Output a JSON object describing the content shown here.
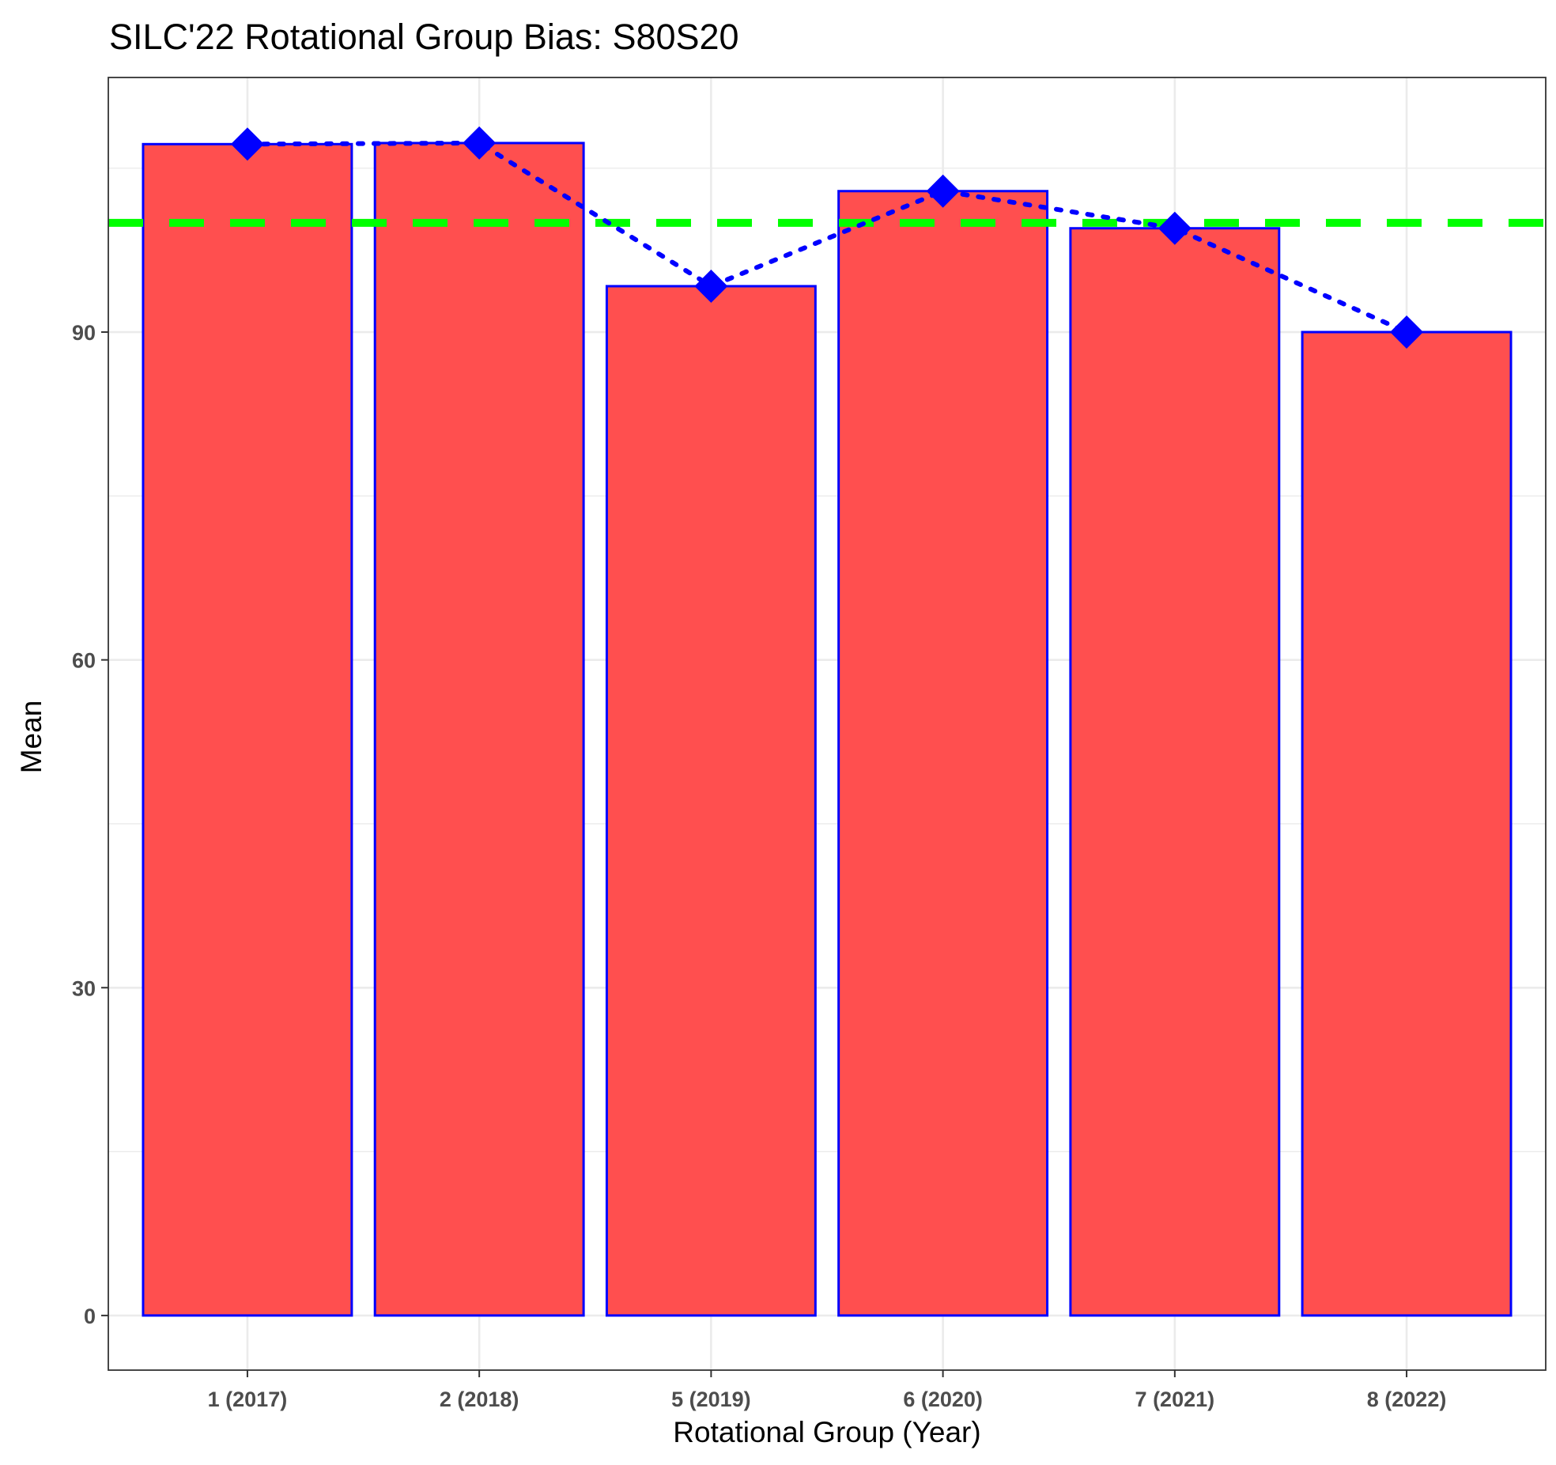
{
  "chart_data": {
    "type": "bar",
    "title": "SILC'22 Rotational Group Bias: S80S20",
    "xlabel": "Rotational Group (Year)",
    "ylabel": "Mean",
    "categories": [
      "1 (2017)",
      "2 (2018)",
      "5 (2019)",
      "6 (2020)",
      "7 (2021)",
      "8 (2022)"
    ],
    "values": [
      107.2,
      107.3,
      94.2,
      102.9,
      99.5,
      90.0
    ],
    "ylim": [
      -5,
      113.3
    ],
    "yticks": [
      0,
      30,
      60,
      90
    ],
    "reference_line": 100,
    "grid": true,
    "colors": {
      "bar_fill": "#ff4f4f",
      "bar_outline": "#0000ff",
      "marker": "#0000ff",
      "connector": "#0000ff",
      "reference_line": "#00ff00",
      "grid": "#ebebeb",
      "panel_border": "#333333"
    }
  }
}
